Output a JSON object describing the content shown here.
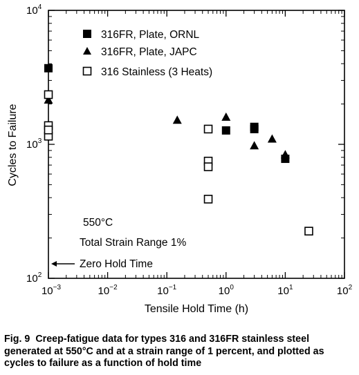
{
  "chart_data": {
    "type": "scatter",
    "xscale": "log",
    "yscale": "log",
    "xlim": [
      0.001,
      100
    ],
    "ylim": [
      100,
      10000
    ],
    "xlabel": "Tensile Hold Time (h)",
    "ylabel": "Cycles to Failure",
    "x_ticks": [
      {
        "base": "10",
        "exp": "−3"
      },
      {
        "base": "10",
        "exp": "−2"
      },
      {
        "base": "10",
        "exp": "−1"
      },
      {
        "base": "10",
        "exp": "0"
      },
      {
        "base": "10",
        "exp": "1"
      },
      {
        "base": "10",
        "exp": "2"
      }
    ],
    "y_ticks": [
      {
        "base": "10",
        "exp": "2"
      },
      {
        "base": "10",
        "exp": "3"
      },
      {
        "base": "10",
        "exp": "4"
      }
    ],
    "legend_position": "top-left",
    "series": [
      {
        "name": "316FR, Plate, ORNL",
        "marker": "filled-square",
        "x": [
          0.001,
          1,
          3,
          3,
          10
        ],
        "y": [
          3700,
          1270,
          1350,
          1300,
          780
        ]
      },
      {
        "name": "316FR, Plate, JAPC",
        "marker": "filled-triangle",
        "x": [
          0.001,
          0.15,
          1,
          3,
          6,
          10
        ],
        "y": [
          2150,
          1520,
          1600,
          980,
          1100,
          840
        ]
      },
      {
        "name": "316 Stainless (3 Heats)",
        "marker": "open-square",
        "x": [
          0.001,
          0.001,
          0.001,
          0.001,
          0.5,
          0.5,
          0.5,
          0.5,
          25
        ],
        "y": [
          2350,
          1380,
          1150,
          1280,
          1300,
          750,
          680,
          390,
          225
        ]
      }
    ],
    "annotations": {
      "temperature": "550°C",
      "strain_range": "Total Strain Range 1%",
      "zero_hold": "Zero Hold Time"
    }
  },
  "caption": {
    "label": "Fig. 9",
    "text": "Creep-fatigue data for types 316 and 316FR stainless steel generated at 550°C and at a strain range of 1 percent, and plotted as cycles to failure as a function of hold time"
  }
}
